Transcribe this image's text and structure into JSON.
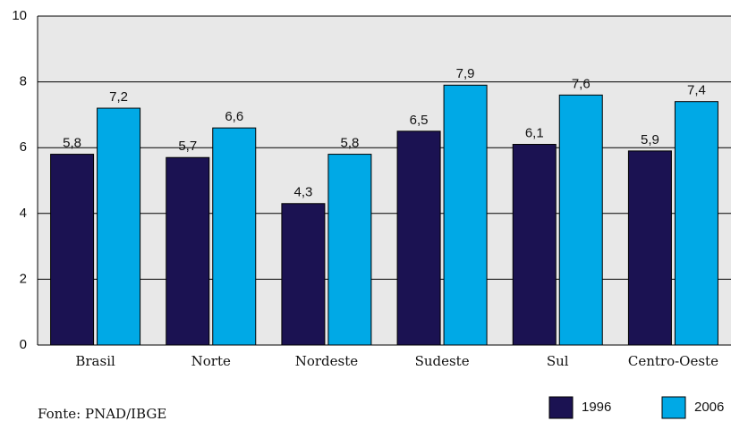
{
  "chart_data": {
    "type": "bar",
    "categories": [
      "Brasil",
      "Norte",
      "Nordeste",
      "Sudeste",
      "Sul",
      "Centro-Oeste"
    ],
    "series": [
      {
        "name": "1996",
        "color": "#1b1252",
        "values": [
          5.8,
          5.7,
          4.3,
          6.5,
          6.1,
          5.9
        ],
        "value_labels": [
          "5,8",
          "5,7",
          "4,3",
          "6,5",
          "6,1",
          "5,9"
        ]
      },
      {
        "name": "2006",
        "color": "#00a9e6",
        "values": [
          7.2,
          6.6,
          5.8,
          7.9,
          7.6,
          7.4
        ],
        "value_labels": [
          "7,2",
          "6,6",
          "5,8",
          "7,9",
          "7,6",
          "7,4"
        ]
      }
    ],
    "ylim": [
      0,
      10
    ],
    "yticks": [
      0,
      2,
      4,
      6,
      8,
      10
    ],
    "grid": true,
    "source": "Fonte: PNAD/IBGE",
    "legend": "bottom-right"
  }
}
